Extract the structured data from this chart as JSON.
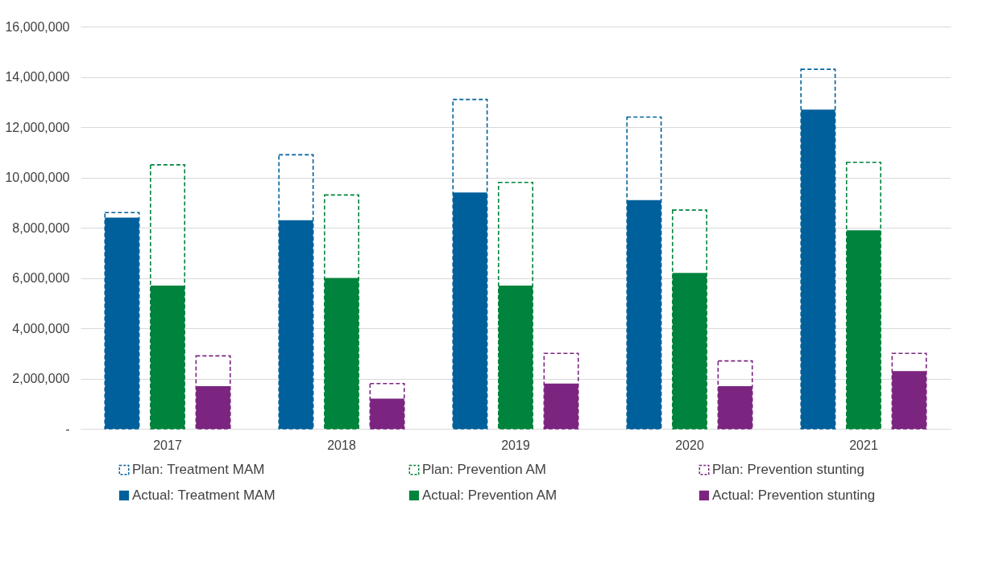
{
  "chart_data": {
    "type": "bar",
    "categories": [
      "2017",
      "2018",
      "2019",
      "2020",
      "2021"
    ],
    "series": [
      {
        "name": "Plan: Treatment MAM",
        "color": "#00609c",
        "line_style": "dashed",
        "values": [
          8600000,
          10900000,
          13100000,
          12400000,
          14300000
        ]
      },
      {
        "name": "Plan: Prevention AM",
        "color": "#00843d",
        "line_style": "dashed",
        "values": [
          10500000,
          9300000,
          9800000,
          8700000,
          10600000
        ]
      },
      {
        "name": "Plan: Prevention stunting",
        "color": "#7b2580",
        "line_style": "dashed",
        "values": [
          2900000,
          1800000,
          3000000,
          2700000,
          3000000
        ]
      },
      {
        "name": "Actual: Treatment MAM",
        "color": "#00609c",
        "values": [
          8400000,
          8300000,
          9400000,
          9100000,
          12700000
        ]
      },
      {
        "name": "Actual: Prevention AM",
        "color": "#00843d",
        "values": [
          5700000,
          6000000,
          5700000,
          6200000,
          7900000
        ]
      },
      {
        "name": "Actual: Prevention stunting",
        "color": "#7b2580",
        "values": [
          1700000,
          1200000,
          1800000,
          1700000,
          2300000
        ]
      }
    ],
    "ylim": [
      0,
      16000000
    ],
    "yticks": [
      {
        "value": 0,
        "label": "-"
      },
      {
        "value": 2000000,
        "label": "2,000,000"
      },
      {
        "value": 4000000,
        "label": "4,000,000"
      },
      {
        "value": 6000000,
        "label": "6,000,000"
      },
      {
        "value": 8000000,
        "label": "8,000,000"
      },
      {
        "value": 10000000,
        "label": "10,000,000"
      },
      {
        "value": 12000000,
        "label": "12,000,000"
      },
      {
        "value": 14000000,
        "label": "14,000,000"
      },
      {
        "value": 16000000,
        "label": "16,000,000"
      }
    ],
    "grid": "y",
    "legend": "bottom"
  }
}
